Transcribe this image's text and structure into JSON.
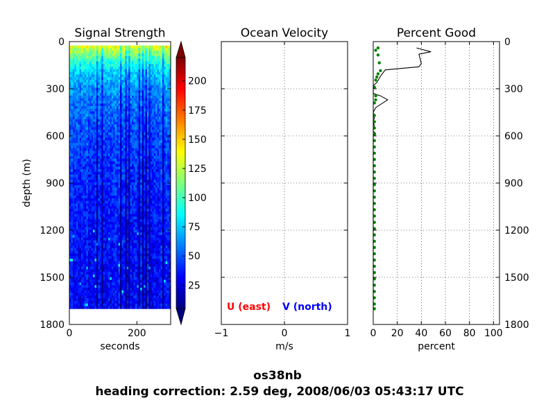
{
  "suptitle": {
    "line1": "os38nb",
    "line2": "heading correction:  2.59 deg, 2008/06/03 05:43:17 UTC"
  },
  "chart_data": [
    {
      "type": "heatmap",
      "title": "Signal Strength",
      "xlabel": "seconds",
      "ylabel": "depth (m)",
      "xlim": [
        0,
        300
      ],
      "ylim": [
        1800,
        0
      ],
      "xticks": [
        "0",
        "200"
      ],
      "yticks": [
        "0",
        "300",
        "600",
        "900",
        "1200",
        "1500",
        "1800"
      ],
      "data_extent": {
        "x": [
          0,
          300
        ],
        "depth": [
          25,
          1700
        ]
      },
      "colorbar": {
        "ticks": [
          "25",
          "50",
          "75",
          "100",
          "125",
          "150",
          "175",
          "200"
        ],
        "range": [
          5,
          220
        ],
        "extend": "both",
        "colormap": [
          "#00007f",
          "#0000ff",
          "#007fff",
          "#00ffff",
          "#7fff7f",
          "#ffff00",
          "#ff7f00",
          "#ff0000",
          "#7f0000"
        ]
      },
      "profile_mean": [
        [
          25,
          140
        ],
        [
          50,
          125
        ],
        [
          100,
          105
        ],
        [
          150,
          88
        ],
        [
          200,
          76
        ],
        [
          300,
          64
        ],
        [
          400,
          56
        ],
        [
          600,
          48
        ],
        [
          800,
          43
        ],
        [
          1000,
          39
        ],
        [
          1200,
          36
        ],
        [
          1400,
          34
        ],
        [
          1700,
          32
        ]
      ],
      "dark_columns": [
        16,
        19,
        30,
        33,
        35,
        41,
        43,
        45,
        47,
        55
      ]
    },
    {
      "type": "line",
      "title": "Ocean Velocity",
      "xlabel": "m/s",
      "xlim": [
        -1,
        1
      ],
      "ylim": [
        1800,
        0
      ],
      "xticks": [
        "−1",
        "0",
        "1"
      ],
      "grid": true,
      "legend_placement": "lower-center",
      "series": [
        {
          "name": "U (east)",
          "color": "#ff0000",
          "values": []
        },
        {
          "name": "V (north)",
          "color": "#0000ff",
          "values": []
        }
      ]
    },
    {
      "type": "line",
      "title": "Percent Good",
      "xlabel": "percent",
      "xlim": [
        0,
        105
      ],
      "ylim": [
        1800,
        0
      ],
      "xticks": [
        "0",
        "20",
        "40",
        "60",
        "80",
        "100"
      ],
      "yticks": [
        "0",
        "300",
        "600",
        "900",
        "1200",
        "1500",
        "1800"
      ],
      "grid": true,
      "series": [
        {
          "color": "#000000",
          "points": [
            [
              36,
              40
            ],
            [
              48,
              65
            ],
            [
              38,
              80
            ],
            [
              40,
              140
            ],
            [
              38,
              160
            ],
            [
              10,
              180
            ],
            [
              6,
              220
            ],
            [
              3,
              260
            ],
            [
              0,
              280
            ],
            [
              0,
              330
            ],
            [
              6,
              345
            ],
            [
              12,
              370
            ],
            [
              2,
              420
            ],
            [
              0,
              450
            ],
            [
              1,
              490
            ],
            [
              0,
              500
            ],
            [
              1,
              545
            ],
            [
              0,
              560
            ],
            [
              0,
              570
            ],
            [
              2,
              585
            ],
            [
              0,
              600
            ],
            [
              0,
              1700
            ]
          ]
        },
        {
          "color": "#008000",
          "markers": [
            [
              4,
              40
            ],
            [
              2,
              55
            ],
            [
              4,
              85
            ],
            [
              5,
              135
            ],
            [
              6,
              185
            ],
            [
              4,
              205
            ],
            [
              3,
              225
            ],
            [
              2,
              245
            ],
            [
              1,
              290
            ],
            [
              2,
              345
            ],
            [
              2,
              370
            ],
            [
              1,
              390
            ],
            [
              1,
              470
            ],
            [
              1,
              510
            ],
            [
              1,
              550
            ],
            [
              1,
              590
            ],
            [
              1,
              630
            ],
            [
              1,
              670
            ],
            [
              1,
              710
            ],
            [
              1,
              750
            ],
            [
              1,
              790
            ],
            [
              1,
              830
            ],
            [
              1,
              870
            ],
            [
              1,
              910
            ],
            [
              1,
              950
            ],
            [
              1,
              990
            ],
            [
              1,
              1030
            ],
            [
              1,
              1070
            ],
            [
              1,
              1110
            ],
            [
              1,
              1150
            ],
            [
              1,
              1190
            ],
            [
              1,
              1230
            ],
            [
              1,
              1270
            ],
            [
              1,
              1310
            ],
            [
              1,
              1350
            ],
            [
              1,
              1390
            ],
            [
              1,
              1430
            ],
            [
              1,
              1470
            ],
            [
              1,
              1510
            ],
            [
              1,
              1550
            ],
            [
              1,
              1590
            ],
            [
              1,
              1630
            ],
            [
              1,
              1670
            ],
            [
              1,
              1700
            ]
          ]
        }
      ]
    }
  ]
}
